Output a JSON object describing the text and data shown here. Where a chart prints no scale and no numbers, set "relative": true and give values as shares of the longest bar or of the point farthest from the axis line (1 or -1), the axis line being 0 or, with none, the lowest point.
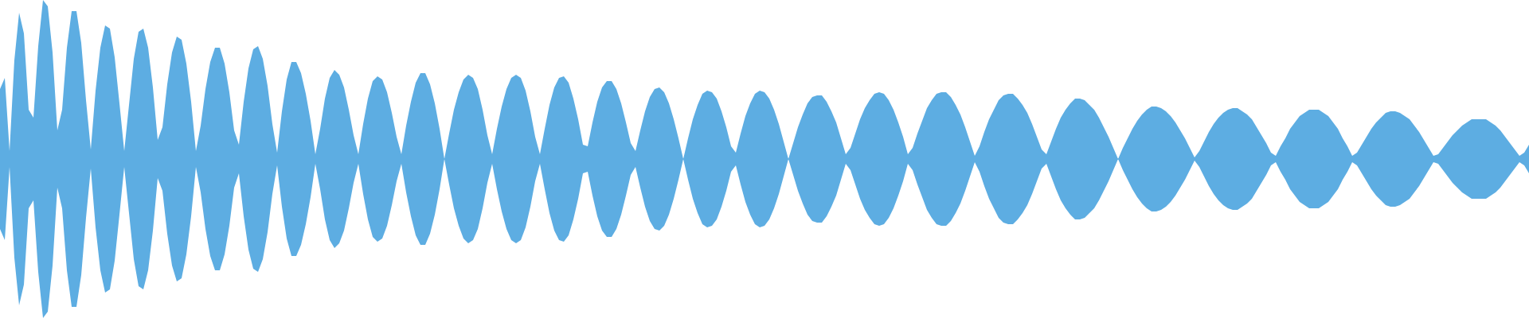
{
  "chart_data": {
    "type": "area",
    "relative": true,
    "categories": [
      null,
      null,
      null,
      null,
      null,
      null,
      null,
      null,
      null,
      null,
      null,
      null,
      null,
      null,
      null,
      null,
      null,
      null,
      null,
      null,
      null,
      null,
      null,
      null,
      null,
      null,
      null,
      null,
      null,
      null,
      null,
      null,
      null,
      null,
      null,
      null,
      null,
      null,
      null,
      null,
      null,
      null,
      null,
      null,
      null,
      null,
      null,
      null,
      null,
      null,
      null,
      null,
      null,
      null,
      null,
      null,
      null,
      null,
      null,
      null,
      null,
      null,
      null,
      null,
      null,
      null,
      null,
      null,
      null,
      null,
      null,
      null,
      null,
      null,
      null,
      null,
      null,
      null,
      null,
      null,
      null,
      null,
      null,
      null,
      null,
      null,
      null,
      null,
      null,
      null,
      null,
      null,
      null,
      null,
      null,
      null,
      null,
      null,
      null,
      null,
      null,
      null,
      null,
      null,
      null,
      null,
      null,
      null,
      null,
      null,
      null,
      null,
      null,
      null,
      null,
      null,
      null,
      null,
      null,
      null,
      null,
      null,
      null,
      null,
      null,
      null,
      null,
      null,
      null,
      null,
      null,
      null,
      null,
      null,
      null,
      null,
      null,
      null,
      null,
      null,
      null,
      null,
      null,
      null,
      null,
      null,
      null,
      null,
      null,
      null,
      null,
      null,
      null,
      null,
      null,
      null,
      null,
      null,
      null,
      null,
      null,
      null,
      null,
      null,
      null,
      null,
      null,
      null,
      null,
      null,
      null,
      null,
      null,
      null,
      null,
      null,
      null,
      null,
      null,
      null,
      null,
      null,
      null,
      null,
      null,
      null,
      null,
      null,
      null,
      null,
      null,
      null,
      null,
      null,
      null,
      null,
      null,
      null,
      null,
      null,
      null,
      null,
      null,
      null,
      null,
      null,
      null,
      null,
      null,
      null,
      null,
      null,
      null,
      null,
      null,
      null,
      null,
      null,
      null,
      null,
      null,
      null,
      null,
      null,
      null,
      null,
      null,
      null,
      null,
      null,
      null,
      null,
      null,
      null,
      null,
      null,
      null,
      null,
      null,
      null,
      null,
      null,
      null,
      null,
      null,
      null,
      null,
      null,
      null,
      null,
      null,
      null,
      null,
      null,
      null,
      null,
      null,
      null,
      null,
      null,
      null,
      null,
      null,
      null,
      null,
      null,
      null,
      null,
      null,
      null,
      null,
      null,
      null,
      null,
      null,
      null,
      null,
      null,
      null,
      null,
      null,
      null,
      null,
      null,
      null,
      null,
      null,
      null,
      null,
      null,
      null,
      null,
      null,
      null,
      null,
      null,
      null,
      null,
      null,
      null,
      null,
      null,
      null,
      null,
      null,
      null,
      null,
      null,
      null,
      null,
      null,
      null,
      null,
      null,
      null,
      null,
      null,
      null,
      null,
      null,
      null
    ],
    "series": [
      {
        "color": "#5dade2",
        "values": [
          0.44,
          0.51,
          0.05,
          0.62,
          0.92,
          0.79,
          0.31,
          0.26,
          0.71,
          1,
          0.96,
          0.67,
          0.18,
          0.31,
          0.7,
          0.93,
          0.93,
          0.73,
          0.37,
          0.06,
          0.43,
          0.7,
          0.84,
          0.82,
          0.64,
          0.35,
          0.05,
          0.34,
          0.63,
          0.8,
          0.82,
          0.7,
          0.45,
          0.12,
          0.2,
          0.47,
          0.67,
          0.77,
          0.75,
          0.6,
          0.36,
          0.05,
          0.21,
          0.44,
          0.61,
          0.7,
          0.7,
          0.6,
          0.42,
          0.18,
          0.09,
          0.36,
          0.57,
          0.69,
          0.71,
          0.63,
          0.46,
          0.22,
          0.04,
          0.3,
          0.5,
          0.61,
          0.61,
          0.54,
          0.41,
          0.24,
          0.03,
          0.19,
          0.38,
          0.51,
          0.56,
          0.53,
          0.45,
          0.31,
          0.15,
          0.03,
          0.22,
          0.38,
          0.49,
          0.52,
          0.5,
          0.42,
          0.29,
          0.14,
          0.03,
          0.21,
          0.36,
          0.48,
          0.54,
          0.54,
          0.47,
          0.35,
          0.19,
          0,
          0.16,
          0.31,
          0.42,
          0.5,
          0.53,
          0.51,
          0.44,
          0.31,
          0.15,
          0.03,
          0.19,
          0.33,
          0.44,
          0.51,
          0.53,
          0.51,
          0.43,
          0.3,
          0.14,
          0.03,
          0.19,
          0.34,
          0.45,
          0.51,
          0.52,
          0.48,
          0.38,
          0.25,
          0.09,
          0.08,
          0.23,
          0.36,
          0.45,
          0.49,
          0.49,
          0.44,
          0.35,
          0.23,
          0.1,
          0.05,
          0.18,
          0.3,
          0.39,
          0.44,
          0.45,
          0.42,
          0.35,
          0.25,
          0.13,
          0,
          0.13,
          0.25,
          0.34,
          0.41,
          0.43,
          0.42,
          0.38,
          0.3,
          0.2,
          0.08,
          0.04,
          0.16,
          0.27,
          0.35,
          0.41,
          0.43,
          0.42,
          0.38,
          0.31,
          0.22,
          0.11,
          0,
          0.1,
          0.2,
          0.28,
          0.35,
          0.39,
          0.4,
          0.4,
          0.36,
          0.3,
          0.23,
          0.13,
          0.03,
          0.07,
          0.16,
          0.25,
          0.32,
          0.37,
          0.41,
          0.42,
          0.41,
          0.37,
          0.31,
          0.23,
          0.14,
          0.03,
          0.07,
          0.16,
          0.24,
          0.32,
          0.37,
          0.41,
          0.42,
          0.42,
          0.39,
          0.34,
          0.28,
          0.2,
          0.11,
          0.02,
          0.08,
          0.17,
          0.25,
          0.31,
          0.37,
          0.4,
          0.41,
          0.41,
          0.38,
          0.34,
          0.29,
          0.22,
          0.14,
          0.06,
          0.03,
          0.11,
          0.19,
          0.26,
          0.31,
          0.35,
          0.38,
          0.38,
          0.37,
          0.34,
          0.31,
          0.26,
          0.2,
          0.14,
          0.07,
          0,
          0.07,
          0.13,
          0.19,
          0.24,
          0.28,
          0.31,
          0.33,
          0.33,
          0.32,
          0.3,
          0.27,
          0.23,
          0.18,
          0.13,
          0.07,
          0.01,
          0.05,
          0.11,
          0.17,
          0.22,
          0.26,
          0.29,
          0.31,
          0.32,
          0.32,
          0.3,
          0.28,
          0.25,
          0.2,
          0.15,
          0.1,
          0.04,
          0.02,
          0.08,
          0.13,
          0.19,
          0.23,
          0.27,
          0.29,
          0.31,
          0.31,
          0.31,
          0.29,
          0.27,
          0.23,
          0.19,
          0.13,
          0.08,
          0.02,
          0.04,
          0.09,
          0.14,
          0.19,
          0.23,
          0.26,
          0.29,
          0.3,
          0.3,
          0.29,
          0.27,
          0.25,
          0.21,
          0.17,
          0.12,
          0.07,
          0.02,
          0.03,
          0.07,
          0.11,
          0.15,
          0.18,
          0.21,
          0.23,
          0.25,
          0.25,
          0.25,
          0.25,
          0.23,
          0.21,
          0.18,
          0.14,
          0.1,
          0.06,
          0.02,
          0.04,
          0.09
        ]
      },
      {
        "color": "#5dade2",
        "values": [
          -0.44,
          -0.51,
          -0.05,
          -0.62,
          -0.92,
          -0.79,
          -0.31,
          -0.26,
          -0.71,
          -1,
          -0.96,
          -0.67,
          -0.18,
          -0.31,
          -0.7,
          -0.93,
          -0.93,
          -0.73,
          -0.37,
          -0.06,
          -0.43,
          -0.7,
          -0.84,
          -0.82,
          -0.64,
          -0.35,
          -0.05,
          -0.34,
          -0.63,
          -0.8,
          -0.82,
          -0.7,
          -0.45,
          -0.12,
          -0.2,
          -0.47,
          -0.67,
          -0.77,
          -0.75,
          -0.6,
          -0.36,
          -0.05,
          -0.21,
          -0.44,
          -0.61,
          -0.7,
          -0.7,
          -0.6,
          -0.42,
          -0.18,
          -0.09,
          -0.36,
          -0.57,
          -0.69,
          -0.71,
          -0.63,
          -0.46,
          -0.22,
          -0.04,
          -0.3,
          -0.5,
          -0.61,
          -0.61,
          -0.54,
          -0.41,
          -0.24,
          -0.03,
          -0.19,
          -0.38,
          -0.51,
          -0.56,
          -0.53,
          -0.45,
          -0.31,
          -0.15,
          -0.03,
          -0.22,
          -0.38,
          -0.49,
          -0.52,
          -0.5,
          -0.42,
          -0.29,
          -0.14,
          -0.03,
          -0.21,
          -0.36,
          -0.48,
          -0.54,
          -0.54,
          -0.47,
          -0.35,
          -0.19,
          0,
          -0.16,
          -0.31,
          -0.42,
          -0.5,
          -0.53,
          -0.51,
          -0.44,
          -0.31,
          -0.15,
          -0.03,
          -0.19,
          -0.33,
          -0.44,
          -0.51,
          -0.53,
          -0.51,
          -0.43,
          -0.3,
          -0.14,
          -0.03,
          -0.19,
          -0.34,
          -0.45,
          -0.51,
          -0.52,
          -0.48,
          -0.38,
          -0.25,
          -0.09,
          -0.08,
          -0.23,
          -0.36,
          -0.45,
          -0.49,
          -0.49,
          -0.44,
          -0.35,
          -0.23,
          -0.1,
          -0.05,
          -0.18,
          -0.3,
          -0.39,
          -0.44,
          -0.45,
          -0.42,
          -0.35,
          -0.25,
          -0.13,
          0,
          -0.13,
          -0.25,
          -0.34,
          -0.41,
          -0.43,
          -0.42,
          -0.38,
          -0.3,
          -0.2,
          -0.08,
          -0.04,
          -0.16,
          -0.27,
          -0.35,
          -0.41,
          -0.43,
          -0.42,
          -0.38,
          -0.31,
          -0.22,
          -0.11,
          0,
          -0.1,
          -0.2,
          -0.28,
          -0.35,
          -0.39,
          -0.4,
          -0.4,
          -0.36,
          -0.3,
          -0.23,
          -0.13,
          -0.03,
          -0.07,
          -0.16,
          -0.25,
          -0.32,
          -0.37,
          -0.41,
          -0.42,
          -0.41,
          -0.37,
          -0.31,
          -0.23,
          -0.14,
          -0.03,
          -0.07,
          -0.16,
          -0.24,
          -0.32,
          -0.37,
          -0.41,
          -0.42,
          -0.42,
          -0.39,
          -0.34,
          -0.28,
          -0.2,
          -0.11,
          -0.02,
          -0.08,
          -0.17,
          -0.25,
          -0.31,
          -0.37,
          -0.4,
          -0.41,
          -0.41,
          -0.38,
          -0.34,
          -0.29,
          -0.22,
          -0.14,
          -0.06,
          -0.03,
          -0.11,
          -0.19,
          -0.26,
          -0.31,
          -0.35,
          -0.38,
          -0.38,
          -0.37,
          -0.34,
          -0.31,
          -0.26,
          -0.2,
          -0.14,
          -0.07,
          0,
          -0.07,
          -0.13,
          -0.19,
          -0.24,
          -0.28,
          -0.31,
          -0.33,
          -0.33,
          -0.32,
          -0.3,
          -0.27,
          -0.23,
          -0.18,
          -0.13,
          -0.07,
          -0.01,
          -0.05,
          -0.11,
          -0.17,
          -0.22,
          -0.26,
          -0.29,
          -0.31,
          -0.32,
          -0.32,
          -0.3,
          -0.28,
          -0.25,
          -0.2,
          -0.15,
          -0.1,
          -0.04,
          -0.02,
          -0.08,
          -0.13,
          -0.19,
          -0.23,
          -0.27,
          -0.29,
          -0.31,
          -0.31,
          -0.31,
          -0.29,
          -0.27,
          -0.23,
          -0.19,
          -0.13,
          -0.08,
          -0.02,
          -0.04,
          -0.09,
          -0.14,
          -0.19,
          -0.23,
          -0.26,
          -0.29,
          -0.3,
          -0.3,
          -0.29,
          -0.27,
          -0.25,
          -0.21,
          -0.17,
          -0.12,
          -0.07,
          -0.02,
          -0.03,
          -0.07,
          -0.11,
          -0.15,
          -0.18,
          -0.21,
          -0.23,
          -0.25,
          -0.25,
          -0.25,
          -0.25,
          -0.23,
          -0.21,
          -0.18,
          -0.14,
          -0.1,
          -0.06,
          -0.02,
          -0.04,
          -0.09
        ]
      }
    ],
    "ref_lines": [
      {
        "axis": "y",
        "value": 0,
        "color": "#5dade2"
      }
    ]
  }
}
